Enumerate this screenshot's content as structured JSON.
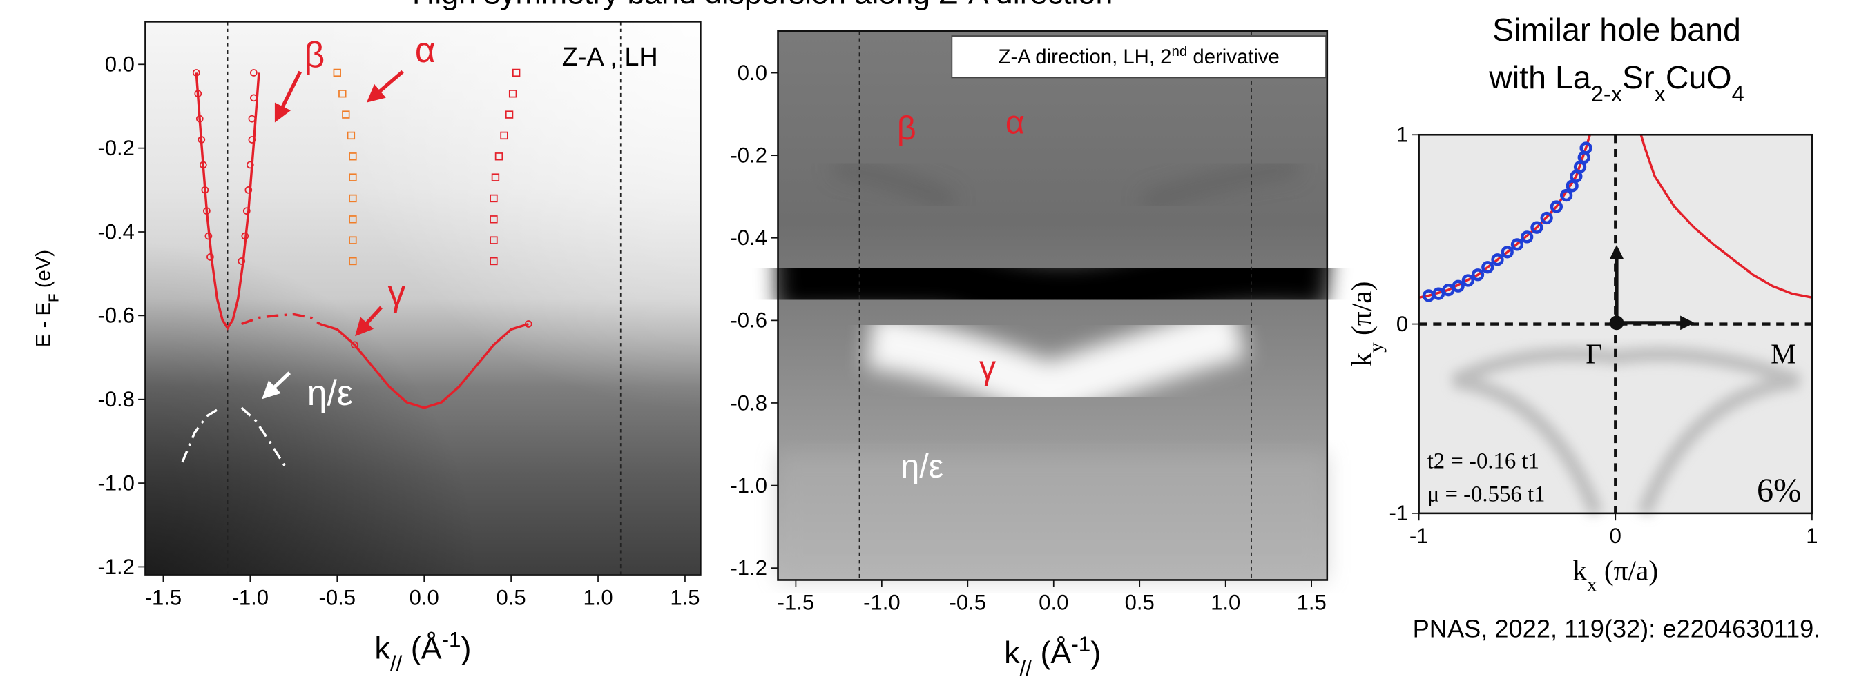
{
  "title": "High symmetry band dispersion along Z-A direction",
  "chart_data": [
    {
      "type": "scatter",
      "xlim": [
        -1.603,
        1.589
      ],
      "ylim": [
        -1.22,
        0.102
      ],
      "xticks": [
        -1.5,
        {
          "value": -1,
          "label": "-1.0"
        },
        -0.5,
        {
          "value": 0,
          "label": "0.0"
        },
        0.5,
        {
          "value": 1,
          "label": "1.0"
        },
        1.5
      ],
      "yticks": [
        {
          "value": 0,
          "label": "0.0"
        },
        -0.2,
        -0.4,
        -0.6,
        -0.8,
        {
          "value": -1,
          "label": "-1.0"
        },
        -1.2
      ],
      "xlabel": [
        "k",
        "//",
        " (Å",
        "-1",
        ")"
      ],
      "ylabel": [
        "E - E",
        "F",
        " (eV)"
      ],
      "vlines": [
        -1.13,
        1.13
      ],
      "annotation": "Z-A , LH",
      "series": [
        {
          "name": "β",
          "mode": "markers",
          "marker": "circle",
          "color": "#e4202a",
          "x": [
            -1.31,
            -1.3,
            -1.29,
            -1.28,
            -1.27,
            -1.26,
            -1.25,
            -1.24,
            -1.23,
            -0.98,
            -0.98,
            -0.99,
            -0.99,
            -1.0,
            -1.01,
            -1.02,
            -1.03,
            -1.05
          ],
          "values": [
            -0.02,
            -0.07,
            -0.13,
            -0.18,
            -0.24,
            -0.3,
            -0.35,
            -0.41,
            -0.46,
            -0.02,
            -0.08,
            -0.13,
            -0.18,
            -0.24,
            -0.3,
            -0.35,
            -0.41,
            -0.47
          ]
        },
        {
          "mode": "line",
          "color": "#e4202a",
          "x": [
            -1.31,
            -1.28,
            -1.25,
            -1.22,
            -1.19,
            -1.16,
            -1.13,
            -1.1,
            -1.07,
            -1.04,
            -1.01,
            -0.98,
            -0.95
          ],
          "values": [
            -0.02,
            -0.19,
            -0.35,
            -0.47,
            -0.56,
            -0.61,
            -0.63,
            -0.61,
            -0.56,
            -0.47,
            -0.35,
            -0.19,
            -0.02
          ]
        },
        {
          "name": "α",
          "mode": "markers",
          "marker": "square",
          "colors": [
            "#f07d28",
            "#f07d28",
            "#f07d28",
            "#f07d28",
            "#f07d28",
            "#f07d28",
            "#f07d28",
            "#f07d28",
            "#f07d28",
            "#f07d28",
            "#e4202a",
            "#e4202a",
            "#e4202a",
            "#e4202a",
            "#e4202a",
            "#e4202a",
            "#e4202a",
            "#e4202a",
            "#e4202a",
            "#e4202a"
          ],
          "x": [
            -0.5,
            -0.47,
            -0.45,
            -0.42,
            -0.41,
            -0.41,
            -0.41,
            -0.41,
            -0.41,
            -0.41,
            0.53,
            0.51,
            0.49,
            0.46,
            0.43,
            0.41,
            0.4,
            0.4,
            0.4,
            0.4
          ],
          "values": [
            -0.02,
            -0.07,
            -0.12,
            -0.17,
            -0.22,
            -0.27,
            -0.32,
            -0.37,
            -0.42,
            -0.47,
            -0.02,
            -0.07,
            -0.12,
            -0.17,
            -0.22,
            -0.27,
            -0.32,
            -0.37,
            -0.42,
            -0.47
          ]
        },
        {
          "name": "γ",
          "mode": "line",
          "color": "#e4202a",
          "x": [
            -0.6,
            -0.5,
            -0.4,
            -0.3,
            -0.2,
            -0.1,
            0,
            0.1,
            0.2,
            0.3,
            0.4,
            0.5,
            0.6
          ],
          "values": [
            -0.62,
            -0.633,
            -0.67,
            -0.72,
            -0.77,
            -0.807,
            -0.82,
            -0.807,
            -0.77,
            -0.72,
            -0.67,
            -0.633,
            -0.62
          ]
        },
        {
          "mode": "line",
          "dash": "dashdot",
          "color": "#e4202a",
          "x": [
            -1.05,
            -0.95,
            -0.85,
            -0.75,
            -0.65,
            -0.6
          ],
          "values": [
            -0.62,
            -0.605,
            -0.6,
            -0.597,
            -0.605,
            -0.62
          ]
        },
        {
          "mode": "markers",
          "marker": "circle",
          "color": "#e4202a",
          "x": [
            -0.4,
            0.6
          ],
          "values": [
            -0.67,
            -0.62
          ]
        },
        {
          "name": "η/ε",
          "mode": "line",
          "dash": "dashdot",
          "color": "#ffffff",
          "x": [
            -1.39,
            -1.32,
            -1.25,
            -1.17,
            -1.11,
            -1.05,
            -0.97,
            -0.89,
            -0.8
          ],
          "values": [
            -0.95,
            -0.88,
            -0.84,
            -0.82,
            null,
            -0.82,
            -0.85,
            -0.9,
            -0.96
          ]
        }
      ]
    },
    {
      "type": "image",
      "xlim": [
        -1.604,
        1.591
      ],
      "ylim": [
        -1.229,
        0.101
      ],
      "xticks": [
        -1.5,
        {
          "value": -1,
          "label": "-1.0"
        },
        -0.5,
        {
          "value": 0,
          "label": "0.0"
        },
        0.5,
        {
          "value": 1,
          "label": "1.0"
        },
        1.5
      ],
      "yticks": [
        {
          "value": 0,
          "label": "0.0"
        },
        -0.2,
        -0.4,
        -0.6,
        -0.8,
        {
          "value": -1,
          "label": "-1.0"
        },
        -1.2
      ],
      "xlabel": [
        "k",
        "//",
        " (Å",
        "-1",
        ")"
      ],
      "vlines": [
        -1.13,
        1.15
      ],
      "annotation": [
        "Z-A direction, LH, 2",
        "nd",
        " derivative"
      ],
      "labels": [
        "β",
        "α",
        "γ",
        "η/ε"
      ]
    },
    {
      "type": "scatter",
      "title": "Similar hole band",
      "subtitle": [
        "with La",
        "2-x",
        "Sr",
        "x",
        "CuO",
        "4"
      ],
      "xlim": [
        -1,
        1
      ],
      "ylim": [
        -1,
        1
      ],
      "xticks": [
        -1,
        0,
        1
      ],
      "yticks": [
        -1,
        0,
        1
      ],
      "xlabel": [
        "k",
        "x",
        " (π/a)"
      ],
      "ylabel": [
        "k",
        "y",
        " (π/a)"
      ],
      "vlines": [
        0
      ],
      "hlines": [
        0
      ],
      "annotations": [
        "Γ",
        "M",
        "t2 = -0.16 t1",
        "μ = -0.556 t1",
        "6%"
      ],
      "source": "PNAS, 2022, 119(32): e2204630119.",
      "series": [
        {
          "mode": "line",
          "color": "#e4202a",
          "x": [
            -1,
            -0.95,
            -0.85,
            -0.7,
            -0.55,
            -0.4,
            -0.3,
            -0.2,
            -0.15,
            -0.13
          ],
          "values": [
            0.14,
            0.15,
            0.18,
            0.26,
            0.38,
            0.51,
            0.62,
            0.78,
            0.93,
            1
          ]
        },
        {
          "mode": "line",
          "color": "#e4202a",
          "x": [
            0.13,
            0.15,
            0.2,
            0.3,
            0.4,
            0.5,
            0.6,
            0.7,
            0.8,
            0.9,
            1
          ],
          "values": [
            1,
            0.93,
            0.78,
            0.62,
            0.51,
            0.42,
            0.34,
            0.26,
            0.2,
            0.16,
            0.14
          ]
        },
        {
          "mode": "markers",
          "marker": "circle",
          "color": "#1f3fd6",
          "x": [
            -0.95,
            -0.9,
            -0.85,
            -0.8,
            -0.75,
            -0.7,
            -0.65,
            -0.6,
            -0.55,
            -0.5,
            -0.45,
            -0.4,
            -0.35,
            -0.3,
            -0.25,
            -0.22,
            -0.2,
            -0.18,
            -0.16,
            -0.15
          ],
          "values": [
            0.15,
            0.16,
            0.18,
            0.2,
            0.23,
            0.26,
            0.3,
            0.34,
            0.38,
            0.42,
            0.46,
            0.51,
            0.56,
            0.62,
            0.68,
            0.73,
            0.78,
            0.83,
            0.88,
            0.93
          ]
        }
      ]
    }
  ]
}
